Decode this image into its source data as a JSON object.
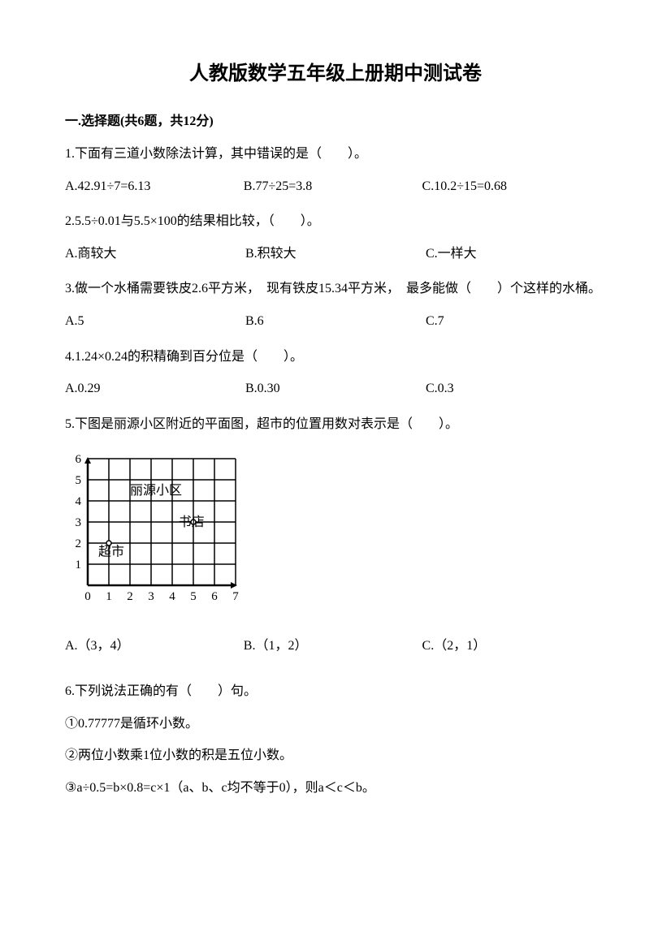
{
  "title": "人教版数学五年级上册期中测试卷",
  "section1": {
    "header": "一.选择题(共6题，共12分)",
    "q1": {
      "text": "1.下面有三道小数除法计算，其中错误的是（　　）。",
      "optA": "A.42.91÷7=6.13",
      "optB": "B.77÷25=3.8",
      "optC": "C.10.2÷15=0.68"
    },
    "q2": {
      "text": "2.5.5÷0.01与5.5×100的结果相比较，（　　）。",
      "optA": "A.商较大",
      "optB": "B.积较大",
      "optC": "C.一样大"
    },
    "q3": {
      "text": "3.做一个水桶需要铁皮2.6平方米，　现有铁皮15.34平方米，　最多能做（　　）个这样的水桶。",
      "optA": "A.5",
      "optB": "B.6",
      "optC": "C.7"
    },
    "q4": {
      "text": "4.1.24×0.24的积精确到百分位是（　　）。",
      "optA": "A.0.29",
      "optB": "B.0.30",
      "optC": "C.0.3"
    },
    "q5": {
      "text": "5.下图是丽源小区附近的平面图，超市的位置用数对表示是（　　）。",
      "optA": "A.（3，4）",
      "optB": "B.（1，2）",
      "optC": "C.（2，1）"
    },
    "q6": {
      "text": "6.下列说法正确的有（　　）句。",
      "s1": "①0.77777是循环小数。",
      "s2": "②两位小数乘1位小数的积是五位小数。",
      "s3": "③a÷0.5=b×0.8=c×1（a、b、c均不等于0），则a＜c＜b。"
    }
  },
  "diagram": {
    "yLabels": [
      "6",
      "5",
      "4",
      "3",
      "2",
      "1"
    ],
    "xLabels": [
      "0",
      "1",
      "2",
      "3",
      "4",
      "5",
      "6",
      "7"
    ],
    "labels": {
      "liyuan": "丽源小区",
      "shudian": "书店",
      "chaoshi": "超市"
    },
    "grid": {
      "rows": 6,
      "cols": 7,
      "cellSize": 26,
      "originX": 28,
      "originY": 12,
      "strokeColor": "#000000",
      "strokeWidth": 1.5,
      "axisStrokeWidth": 2.5
    },
    "points": [
      {
        "gx": 1,
        "gy": 2
      },
      {
        "gx": 5,
        "gy": 3
      }
    ],
    "textPositions": {
      "liyuan": {
        "gx": 2,
        "gy": 4.5
      },
      "shudian": {
        "gx": 4.3,
        "gy": 3
      },
      "chaoshi": {
        "gx": 0.5,
        "gy": 1.6
      }
    },
    "fontSize": 16,
    "pointRadius": 3
  }
}
